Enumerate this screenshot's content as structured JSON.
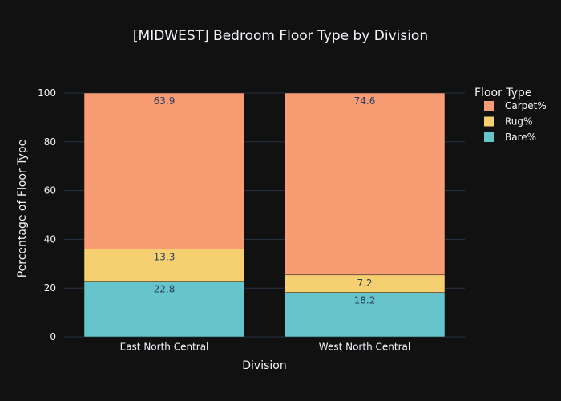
{
  "chart_data": {
    "type": "bar",
    "stacked": true,
    "title": "[MIDWEST] Bedroom Floor Type by Division",
    "xlabel": "Division",
    "ylabel": "Percentage of Floor Type",
    "categories": [
      "East North Central",
      "West North Central"
    ],
    "ylim": [
      0,
      100
    ],
    "yticks": [
      0,
      20,
      40,
      60,
      80,
      100
    ],
    "grid": true,
    "legend_title": "Floor Type",
    "legend_position": "top-right",
    "series": [
      {
        "name": "Bare%",
        "values": [
          22.8,
          18.2
        ],
        "color": "#66c5cc"
      },
      {
        "name": "Rug%",
        "values": [
          13.3,
          7.2
        ],
        "color": "#f6cf71"
      },
      {
        "name": "Carpet%",
        "values": [
          63.9,
          74.6
        ],
        "color": "#f89c74"
      }
    ],
    "colors": {
      "background": "#111111",
      "grid": "#283442",
      "text": "#f2f5fa",
      "data_label": "#2a3f5f"
    }
  }
}
